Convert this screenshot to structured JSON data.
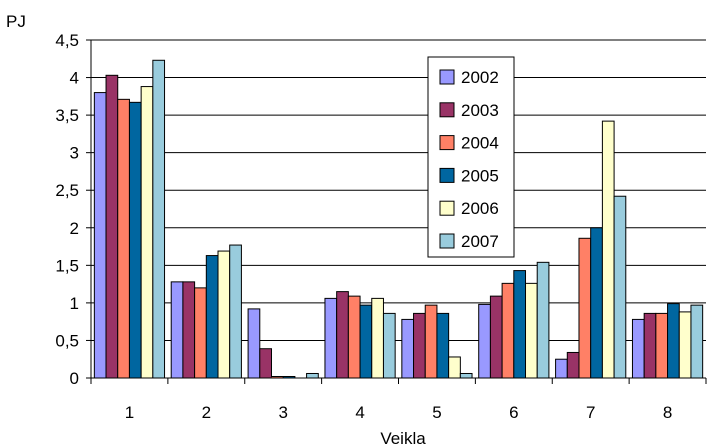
{
  "chart_data": {
    "type": "bar",
    "xlabel": "Veikla",
    "ylabel": "PJ",
    "ylim": [
      0,
      4.5
    ],
    "yticks": [
      "0",
      "0,5",
      "1",
      "1,5",
      "2",
      "2,5",
      "3",
      "3,5",
      "4",
      "4,5"
    ],
    "ytick_values": [
      0,
      0.5,
      1,
      1.5,
      2,
      2.5,
      3,
      3.5,
      4,
      4.5
    ],
    "categories": [
      "1",
      "2",
      "3",
      "4",
      "5",
      "6",
      "7",
      "8"
    ],
    "grid": true,
    "legend_position": "top-right inside plot",
    "series": [
      {
        "name": "2002",
        "color": "#9999ff",
        "values": [
          3.8,
          1.28,
          0.92,
          1.06,
          0.78,
          0.98,
          0.25,
          0.78
        ]
      },
      {
        "name": "2003",
        "color": "#993366",
        "values": [
          4.03,
          1.28,
          0.39,
          1.15,
          0.86,
          1.09,
          0.34,
          0.86
        ]
      },
      {
        "name": "2004",
        "color": "#ff8066",
        "values": [
          3.71,
          1.2,
          0.02,
          1.09,
          0.97,
          1.26,
          1.86,
          0.86
        ]
      },
      {
        "name": "2005",
        "color": "#0066a0",
        "values": [
          3.67,
          1.63,
          0.02,
          0.97,
          0.86,
          1.43,
          2.0,
          0.99
        ]
      },
      {
        "name": "2006",
        "color": "#ffffcc",
        "values": [
          3.88,
          1.69,
          0.0,
          1.06,
          0.28,
          1.26,
          3.42,
          0.88
        ]
      },
      {
        "name": "2007",
        "color": "#99ccdd",
        "values": [
          4.23,
          1.77,
          0.06,
          0.86,
          0.06,
          1.54,
          2.42,
          0.97
        ]
      }
    ]
  }
}
